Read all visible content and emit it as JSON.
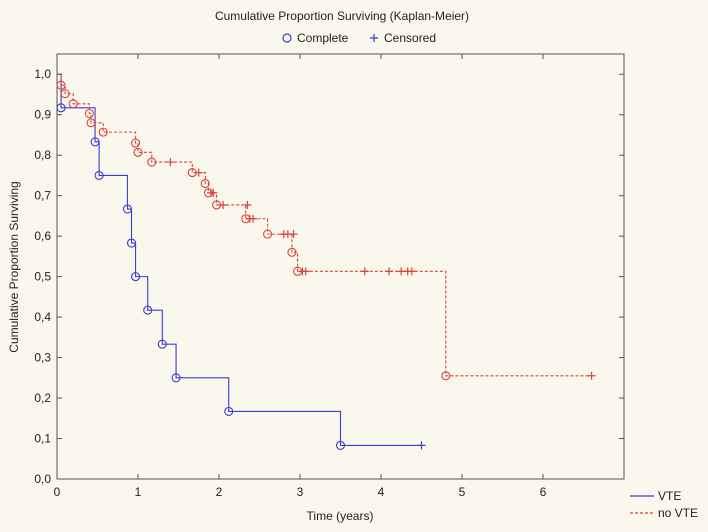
{
  "chart_data": {
    "type": "line",
    "title": "Cumulative Proportion Surviving (Kaplan-Meier)",
    "xlabel": "Time (years)",
    "ylabel": "Cumulative Proportion Surviving",
    "xlim": [
      0,
      7
    ],
    "ylim": [
      0,
      1.05
    ],
    "x_ticks": [
      "0",
      "1",
      "2",
      "3",
      "4",
      "5",
      "6"
    ],
    "y_ticks": [
      "0,0",
      "0,1",
      "0,2",
      "0,3",
      "0,4",
      "0,5",
      "0,6",
      "0,7",
      "0,8",
      "0,9",
      "1,0"
    ],
    "grid": false,
    "marker_legend": [
      {
        "label": "Complete",
        "marker": "circle"
      },
      {
        "label": "Censored",
        "marker": "plus"
      }
    ],
    "series_legend_position": "bottom-right",
    "series": [
      {
        "name": "VTE",
        "color": "#3b3bd6",
        "line_style": "solid",
        "steps": [
          [
            0,
            1.0
          ],
          [
            0.05,
            0.917
          ],
          [
            0.47,
            0.833
          ],
          [
            0.52,
            0.75
          ],
          [
            0.87,
            0.667
          ],
          [
            0.92,
            0.583
          ],
          [
            0.97,
            0.5
          ],
          [
            1.12,
            0.417
          ],
          [
            1.3,
            0.333
          ],
          [
            1.47,
            0.25
          ],
          [
            2.12,
            0.167
          ],
          [
            3.5,
            0.083
          ]
        ],
        "end_x": 4.5,
        "complete": [
          [
            0.05,
            0.917
          ],
          [
            0.47,
            0.833
          ],
          [
            0.52,
            0.75
          ],
          [
            0.87,
            0.667
          ],
          [
            0.92,
            0.583
          ],
          [
            0.97,
            0.5
          ],
          [
            1.12,
            0.417
          ],
          [
            1.3,
            0.333
          ],
          [
            1.47,
            0.25
          ],
          [
            2.12,
            0.167
          ],
          [
            3.5,
            0.083
          ]
        ],
        "censored": [
          [
            4.5,
            0.083
          ]
        ]
      },
      {
        "name": "no VTE",
        "color": "#e0403c",
        "line_style": "dashed",
        "steps": [
          [
            0,
            1.0
          ],
          [
            0.05,
            0.973
          ],
          [
            0.1,
            0.952
          ],
          [
            0.2,
            0.927
          ],
          [
            0.4,
            0.903
          ],
          [
            0.42,
            0.88
          ],
          [
            0.57,
            0.857
          ],
          [
            0.97,
            0.83
          ],
          [
            1.0,
            0.807
          ],
          [
            1.17,
            0.783
          ],
          [
            1.67,
            0.757
          ],
          [
            1.83,
            0.73
          ],
          [
            1.87,
            0.707
          ],
          [
            1.97,
            0.677
          ],
          [
            2.33,
            0.643
          ],
          [
            2.6,
            0.605
          ],
          [
            2.9,
            0.56
          ],
          [
            2.97,
            0.513
          ],
          [
            4.8,
            0.255
          ]
        ],
        "end_x": 6.6,
        "complete": [
          [
            0.05,
            0.973
          ],
          [
            0.1,
            0.952
          ],
          [
            0.2,
            0.927
          ],
          [
            0.4,
            0.903
          ],
          [
            0.42,
            0.88
          ],
          [
            0.57,
            0.857
          ],
          [
            0.97,
            0.83
          ],
          [
            1.0,
            0.807
          ],
          [
            1.17,
            0.783
          ],
          [
            1.67,
            0.757
          ],
          [
            1.83,
            0.73
          ],
          [
            1.87,
            0.707
          ],
          [
            1.97,
            0.677
          ],
          [
            2.33,
            0.643
          ],
          [
            2.6,
            0.605
          ],
          [
            2.9,
            0.56
          ],
          [
            2.97,
            0.513
          ],
          [
            4.8,
            0.255
          ]
        ],
        "censored": [
          [
            1.4,
            0.783
          ],
          [
            1.75,
            0.757
          ],
          [
            1.9,
            0.707
          ],
          [
            1.93,
            0.707
          ],
          [
            2.05,
            0.677
          ],
          [
            2.35,
            0.677
          ],
          [
            2.38,
            0.643
          ],
          [
            2.42,
            0.643
          ],
          [
            2.8,
            0.605
          ],
          [
            2.85,
            0.605
          ],
          [
            2.92,
            0.605
          ],
          [
            3.03,
            0.513
          ],
          [
            3.07,
            0.513
          ],
          [
            3.8,
            0.513
          ],
          [
            4.1,
            0.513
          ],
          [
            4.25,
            0.513
          ],
          [
            4.33,
            0.513
          ],
          [
            4.38,
            0.513
          ],
          [
            6.6,
            0.255
          ]
        ]
      }
    ]
  }
}
